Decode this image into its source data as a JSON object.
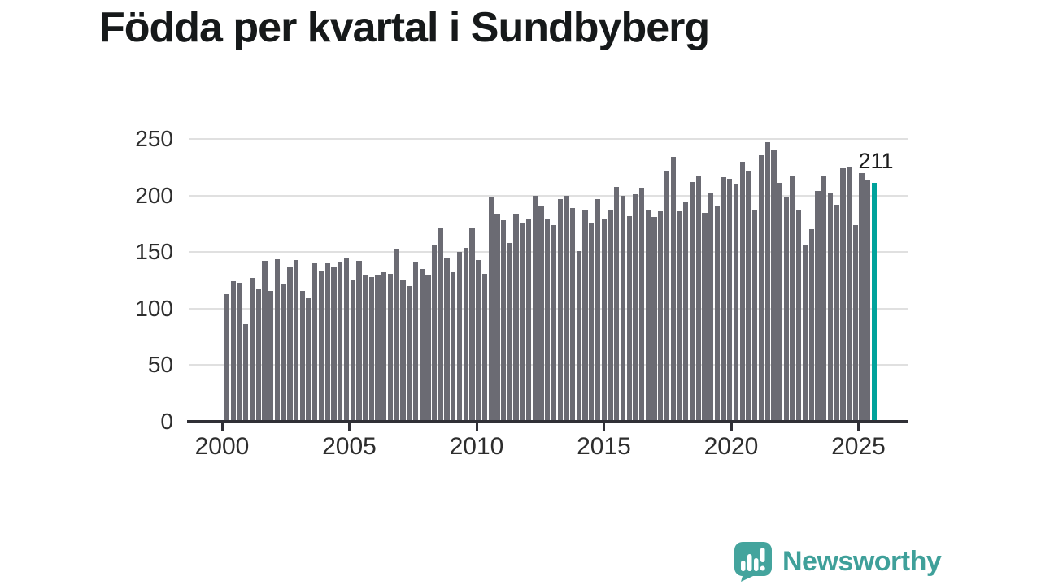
{
  "title": "Födda per kvartal i Sundbyberg",
  "annotation": {
    "last_value_label": "211"
  },
  "branding": {
    "name": "Newsworthy",
    "icon": "newsworthy-speech-bubble-bar-chart-icon"
  },
  "colors": {
    "bar": "#6b6b73",
    "highlight": "#00a29b",
    "axis": "#303036",
    "grid": "#e0e0e0",
    "tick_text": "#2d2d2d",
    "title_text": "#16191a",
    "logo_teal": "#3fa09a"
  },
  "y_axis": {
    "tick_labels": [
      "0",
      "50",
      "100",
      "150",
      "200",
      "250"
    ]
  },
  "x_axis": {
    "tick_labels": [
      "2000",
      "2005",
      "2010",
      "2015",
      "2020",
      "2025"
    ]
  },
  "chart_data": {
    "type": "bar",
    "title": "Födda per kvartal i Sundbyberg",
    "xlabel": "",
    "ylabel": "",
    "ylim": [
      0,
      250
    ],
    "y_ticks": [
      0,
      50,
      100,
      150,
      200,
      250
    ],
    "x_tick_labels": [
      "2000",
      "2005",
      "2010",
      "2015",
      "2020",
      "2025"
    ],
    "grid": "horizontal",
    "x_unit": "quarter",
    "x_range": {
      "start": "1999 Q4",
      "end": "2025 Q3",
      "step": "quarter"
    },
    "highlight_last": true,
    "last_label": "211",
    "values": [
      113,
      124,
      123,
      86,
      127,
      117,
      142,
      116,
      144,
      122,
      137,
      143,
      116,
      109,
      140,
      133,
      140,
      137,
      141,
      145,
      125,
      142,
      130,
      128,
      130,
      132,
      131,
      153,
      126,
      120,
      141,
      135,
      130,
      157,
      171,
      145,
      132,
      150,
      154,
      171,
      143,
      131,
      198,
      184,
      178,
      158,
      184,
      176,
      179,
      200,
      191,
      180,
      174,
      197,
      200,
      189,
      151,
      187,
      175,
      197,
      179,
      187,
      208,
      200,
      182,
      201,
      207,
      187,
      181,
      186,
      222,
      234,
      186,
      194,
      212,
      218,
      185,
      202,
      191,
      216,
      215,
      210,
      230,
      221,
      187,
      236,
      247,
      240,
      211,
      198,
      218,
      187,
      157,
      170,
      204,
      218,
      202,
      192,
      224,
      225,
      174,
      220,
      214,
      211
    ]
  }
}
